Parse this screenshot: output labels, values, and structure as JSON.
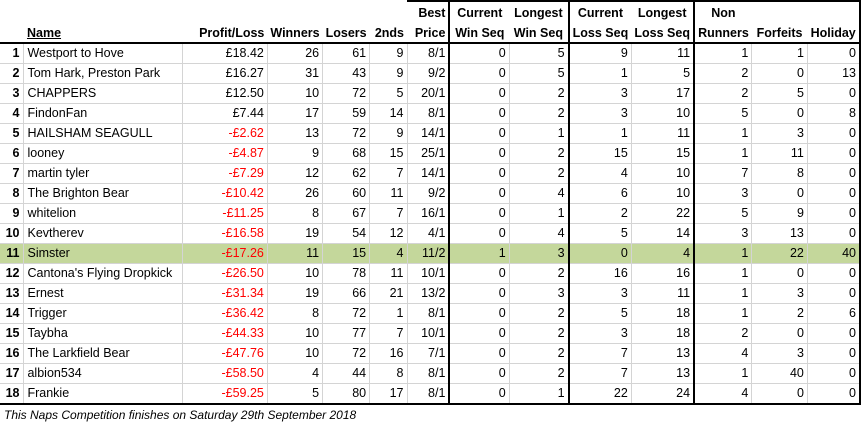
{
  "headers": {
    "name": "Name",
    "profit_loss": "Profit/Loss",
    "winners": "Winners",
    "losers": "Losers",
    "seconds": "2nds",
    "best_price_1": "Best",
    "best_price_2": "Price",
    "cur_win_1": "Current",
    "cur_win_2": "Win Seq",
    "long_win_1": "Longest",
    "long_win_2": "Win Seq",
    "cur_loss_1": "Current",
    "cur_loss_2": "Loss Seq",
    "long_loss_1": "Longest",
    "long_loss_2": "Loss Seq",
    "non_runners_1": "Non",
    "non_runners_2": "Runners",
    "forfeits": "Forfeits",
    "holiday": "Holiday"
  },
  "rows": [
    {
      "rank": "1",
      "name": "Westport to Hove",
      "pl": "£18.42",
      "neg": false,
      "winners": "26",
      "losers": "61",
      "seconds": "9",
      "best": "8/1",
      "cur_win": "0",
      "long_win": "5",
      "cur_loss": "9",
      "long_loss": "11",
      "nr": "1",
      "forfeits": "1",
      "holiday": "0"
    },
    {
      "rank": "2",
      "name": "Tom Hark, Preston Park",
      "pl": "£16.27",
      "neg": false,
      "winners": "31",
      "losers": "43",
      "seconds": "9",
      "best": "9/2",
      "cur_win": "0",
      "long_win": "5",
      "cur_loss": "1",
      "long_loss": "5",
      "nr": "2",
      "forfeits": "0",
      "holiday": "13"
    },
    {
      "rank": "3",
      "name": "CHAPPERS",
      "pl": "£12.50",
      "neg": false,
      "winners": "10",
      "losers": "72",
      "seconds": "5",
      "best": "20/1",
      "cur_win": "0",
      "long_win": "2",
      "cur_loss": "3",
      "long_loss": "17",
      "nr": "2",
      "forfeits": "5",
      "holiday": "0"
    },
    {
      "rank": "4",
      "name": "FindonFan",
      "pl": "£7.44",
      "neg": false,
      "winners": "17",
      "losers": "59",
      "seconds": "14",
      "best": "8/1",
      "cur_win": "0",
      "long_win": "2",
      "cur_loss": "3",
      "long_loss": "10",
      "nr": "5",
      "forfeits": "0",
      "holiday": "8"
    },
    {
      "rank": "5",
      "name": "HAILSHAM SEAGULL",
      "pl": "-£2.62",
      "neg": true,
      "winners": "13",
      "losers": "72",
      "seconds": "9",
      "best": "14/1",
      "cur_win": "0",
      "long_win": "1",
      "cur_loss": "1",
      "long_loss": "11",
      "nr": "1",
      "forfeits": "3",
      "holiday": "0"
    },
    {
      "rank": "6",
      "name": "looney",
      "pl": "-£4.87",
      "neg": true,
      "winners": "9",
      "losers": "68",
      "seconds": "15",
      "best": "25/1",
      "cur_win": "0",
      "long_win": "2",
      "cur_loss": "15",
      "long_loss": "15",
      "nr": "1",
      "forfeits": "11",
      "holiday": "0"
    },
    {
      "rank": "7",
      "name": "martin tyler",
      "pl": "-£7.29",
      "neg": true,
      "winners": "12",
      "losers": "62",
      "seconds": "7",
      "best": "14/1",
      "cur_win": "0",
      "long_win": "2",
      "cur_loss": "4",
      "long_loss": "10",
      "nr": "7",
      "forfeits": "8",
      "holiday": "0"
    },
    {
      "rank": "8",
      "name": "The Brighton Bear",
      "pl": "-£10.42",
      "neg": true,
      "winners": "26",
      "losers": "60",
      "seconds": "11",
      "best": "9/2",
      "cur_win": "0",
      "long_win": "4",
      "cur_loss": "6",
      "long_loss": "10",
      "nr": "3",
      "forfeits": "0",
      "holiday": "0"
    },
    {
      "rank": "9",
      "name": "whitelion",
      "pl": "-£11.25",
      "neg": true,
      "winners": "8",
      "losers": "67",
      "seconds": "7",
      "best": "16/1",
      "cur_win": "0",
      "long_win": "1",
      "cur_loss": "2",
      "long_loss": "22",
      "nr": "5",
      "forfeits": "9",
      "holiday": "0"
    },
    {
      "rank": "10",
      "name": "Kevtherev",
      "pl": "-£16.58",
      "neg": true,
      "winners": "19",
      "losers": "54",
      "seconds": "12",
      "best": "4/1",
      "cur_win": "0",
      "long_win": "4",
      "cur_loss": "5",
      "long_loss": "14",
      "nr": "3",
      "forfeits": "13",
      "holiday": "0"
    },
    {
      "rank": "11",
      "name": "Simster",
      "pl": "-£17.26",
      "neg": true,
      "winners": "11",
      "losers": "15",
      "seconds": "4",
      "best": "11/2",
      "cur_win": "1",
      "long_win": "3",
      "cur_loss": "0",
      "long_loss": "4",
      "nr": "1",
      "forfeits": "22",
      "holiday": "40",
      "highlight": true
    },
    {
      "rank": "12",
      "name": "Cantona's Flying Dropkick",
      "pl": "-£26.50",
      "neg": true,
      "winners": "10",
      "losers": "78",
      "seconds": "11",
      "best": "10/1",
      "cur_win": "0",
      "long_win": "2",
      "cur_loss": "16",
      "long_loss": "16",
      "nr": "1",
      "forfeits": "0",
      "holiday": "0"
    },
    {
      "rank": "13",
      "name": "Ernest",
      "pl": "-£31.34",
      "neg": true,
      "winners": "19",
      "losers": "66",
      "seconds": "21",
      "best": "13/2",
      "cur_win": "0",
      "long_win": "3",
      "cur_loss": "3",
      "long_loss": "11",
      "nr": "1",
      "forfeits": "3",
      "holiday": "0"
    },
    {
      "rank": "14",
      "name": "Trigger",
      "pl": "-£36.42",
      "neg": true,
      "winners": "8",
      "losers": "72",
      "seconds": "1",
      "best": "8/1",
      "cur_win": "0",
      "long_win": "2",
      "cur_loss": "5",
      "long_loss": "18",
      "nr": "1",
      "forfeits": "2",
      "holiday": "6"
    },
    {
      "rank": "15",
      "name": "Taybha",
      "pl": "-£44.33",
      "neg": true,
      "winners": "10",
      "losers": "77",
      "seconds": "7",
      "best": "10/1",
      "cur_win": "0",
      "long_win": "2",
      "cur_loss": "3",
      "long_loss": "18",
      "nr": "2",
      "forfeits": "0",
      "holiday": "0"
    },
    {
      "rank": "16",
      "name": "The Larkfield Bear",
      "pl": "-£47.76",
      "neg": true,
      "winners": "10",
      "losers": "72",
      "seconds": "16",
      "best": "7/1",
      "cur_win": "0",
      "long_win": "2",
      "cur_loss": "7",
      "long_loss": "13",
      "nr": "4",
      "forfeits": "3",
      "holiday": "0"
    },
    {
      "rank": "17",
      "name": "albion534",
      "pl": "-£58.50",
      "neg": true,
      "winners": "4",
      "losers": "44",
      "seconds": "8",
      "best": "8/1",
      "cur_win": "0",
      "long_win": "2",
      "cur_loss": "7",
      "long_loss": "13",
      "nr": "1",
      "forfeits": "40",
      "holiday": "0"
    },
    {
      "rank": "18",
      "name": "Frankie",
      "pl": "-£59.25",
      "neg": true,
      "winners": "5",
      "losers": "80",
      "seconds": "17",
      "best": "8/1",
      "cur_win": "0",
      "long_win": "1",
      "cur_loss": "22",
      "long_loss": "24",
      "nr": "4",
      "forfeits": "0",
      "holiday": "0"
    }
  ],
  "footer": "This Naps Competition finishes on Saturday 29th September 2018",
  "colors": {
    "highlight_row": "#c4d79b",
    "negative_text": "#ff0000",
    "gridline": "#d4d4d4",
    "border": "#000000"
  }
}
